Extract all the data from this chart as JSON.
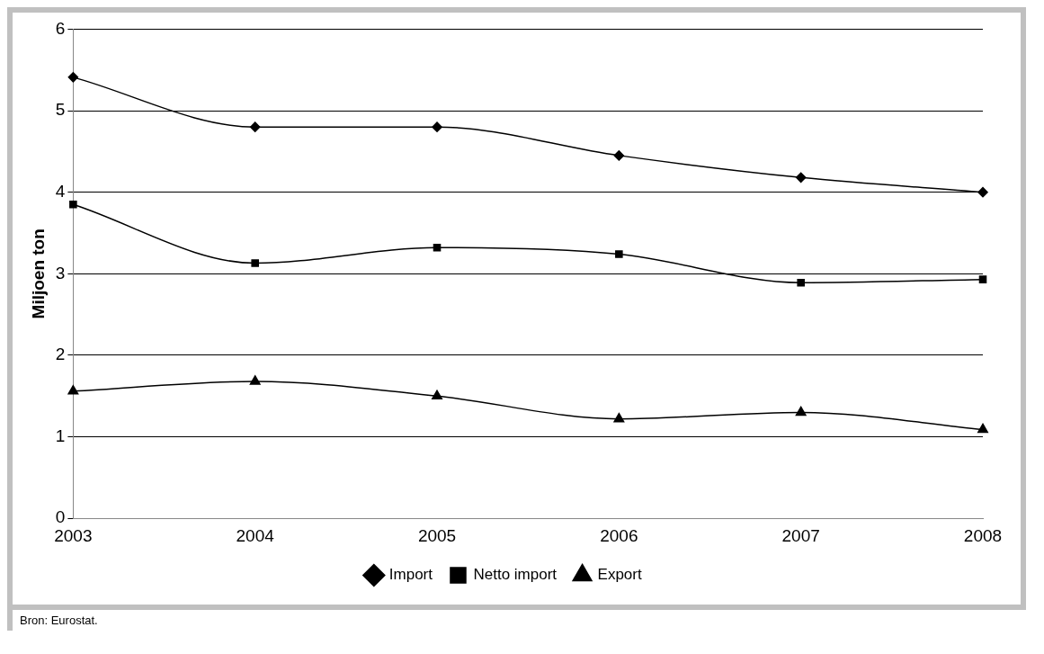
{
  "chart_data": {
    "type": "line",
    "ylabel": "Miljoen ton",
    "categories": [
      "2003",
      "2004",
      "2005",
      "2006",
      "2007",
      "2008"
    ],
    "series": [
      {
        "name": "Import",
        "color": "#000000",
        "marker": "diamond",
        "values": [
          5.41,
          4.8,
          4.8,
          4.45,
          4.18,
          4.0
        ]
      },
      {
        "name": "Netto import",
        "color": "#000000",
        "marker": "square",
        "values": [
          3.85,
          3.13,
          3.32,
          3.24,
          2.89,
          2.93
        ]
      },
      {
        "name": "Export",
        "color": "#000000",
        "marker": "triangle",
        "values": [
          1.56,
          1.68,
          1.5,
          1.22,
          1.3,
          1.09
        ]
      }
    ],
    "ylim": [
      0,
      6
    ],
    "yticks": [
      0,
      1,
      2,
      3,
      4,
      5,
      6
    ],
    "grid": "y",
    "legend": "bottom",
    "line_style": "solid",
    "annotations": [
      "Bron: Eurostat."
    ]
  }
}
